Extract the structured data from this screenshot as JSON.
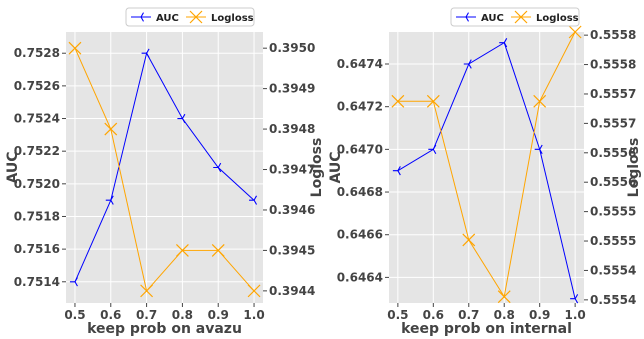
{
  "chart_data": [
    {
      "type": "line",
      "x": [
        0.5,
        0.6,
        0.7,
        0.8,
        0.9,
        1.0
      ],
      "xlabel": "keep prob on avazu",
      "ylabel_left": "AUC",
      "ylabel_right": "Logloss",
      "xlim": [
        0.475,
        1.025
      ],
      "ylim_left": [
        0.75127,
        0.75293
      ],
      "ylim_right": [
        0.39437,
        0.39504
      ],
      "yticks_left": [
        "0.7514",
        "0.7516",
        "0.7518",
        "0.7520",
        "0.7522",
        "0.7524",
        "0.7526",
        "0.7528"
      ],
      "yticks_right": [
        "0.3944",
        "0.3945",
        "0.3946",
        "0.3947",
        "0.3948",
        "0.3949",
        "0.3950"
      ],
      "xticks": [
        "0.5",
        "0.6",
        "0.7",
        "0.8",
        "0.9",
        "1.0"
      ],
      "grid": true,
      "legend_position": "top-center",
      "series": [
        {
          "name": "AUC",
          "axis": "left",
          "color": "#0000ff",
          "marker": "tri",
          "values": [
            0.7514,
            0.7519,
            0.7528,
            0.7524,
            0.7521,
            0.7519
          ]
        },
        {
          "name": "Logloss",
          "axis": "right",
          "color": "#ffa500",
          "marker": "x",
          "values": [
            0.395,
            0.3948,
            0.3944,
            0.3945,
            0.3945,
            0.3944
          ]
        }
      ]
    },
    {
      "type": "line",
      "x": [
        0.5,
        0.6,
        0.7,
        0.8,
        0.9,
        1.0
      ],
      "xlabel": "keep prob on internal",
      "ylabel_left": "AUC",
      "ylabel_right": "Logloss",
      "xlim": [
        0.475,
        1.025
      ],
      "ylim_left": [
        0.64628,
        0.64755
      ],
      "ylim_right": [
        0.55539,
        0.55582
      ],
      "yticks_left": [
        "0.6464",
        "0.6466",
        "0.6468",
        "0.6470",
        "0.6472",
        "0.6474"
      ],
      "yticks_right": [
        "0.5554",
        "0.5554",
        "0.5555",
        "0.5555",
        "0.5556",
        "0.5556",
        "0.5557",
        "0.5557",
        "0.5558",
        "0.5558"
      ],
      "xticks": [
        "0.5",
        "0.6",
        "0.7",
        "0.8",
        "0.9",
        "1.0"
      ],
      "grid": true,
      "legend_position": "top-center",
      "series": [
        {
          "name": "AUC",
          "axis": "left",
          "color": "#0000ff",
          "marker": "tri",
          "values": [
            0.6469,
            0.647,
            0.6474,
            0.6475,
            0.647,
            0.6463
          ]
        },
        {
          "name": "Logloss",
          "axis": "right",
          "color": "#ffa500",
          "marker": "x",
          "values": [
            0.55571,
            0.55571,
            0.55549,
            0.5554,
            0.55571,
            0.55582
          ]
        }
      ]
    }
  ]
}
